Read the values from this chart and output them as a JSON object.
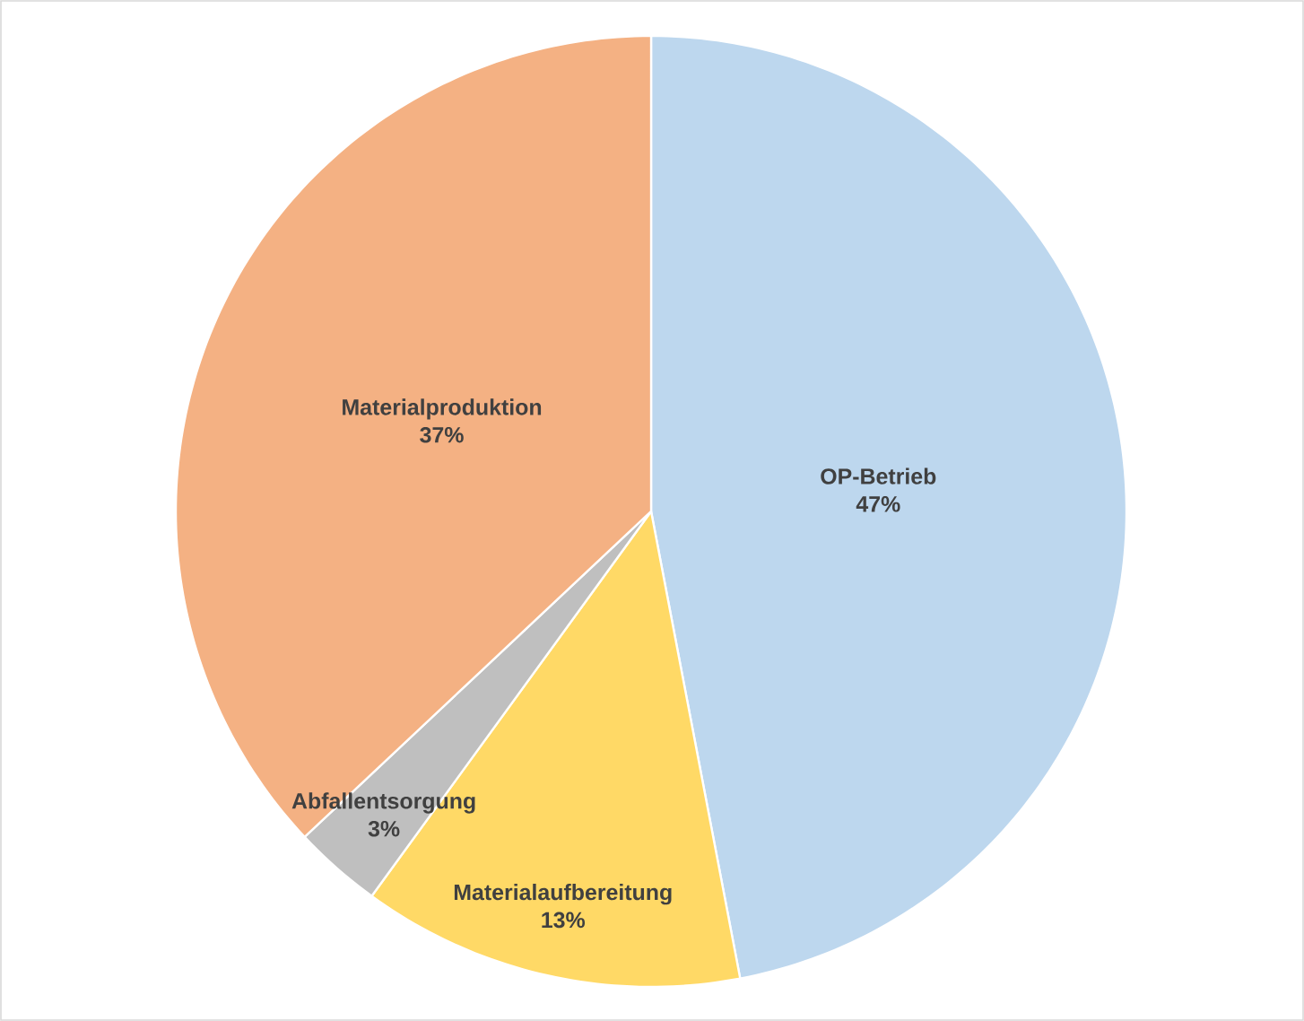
{
  "chart_data": {
    "type": "pie",
    "categories": [
      "OP-Betrieb",
      "Materialaufbereitung",
      "Abfallentsorgung",
      "Materialproduktion"
    ],
    "values": [
      47,
      13,
      3,
      37
    ],
    "value_labels": [
      "47%",
      "13%",
      "3%",
      "37%"
    ],
    "colors": [
      "#bdd7ee",
      "#ffd966",
      "#bfbfbf",
      "#f4b183"
    ]
  }
}
